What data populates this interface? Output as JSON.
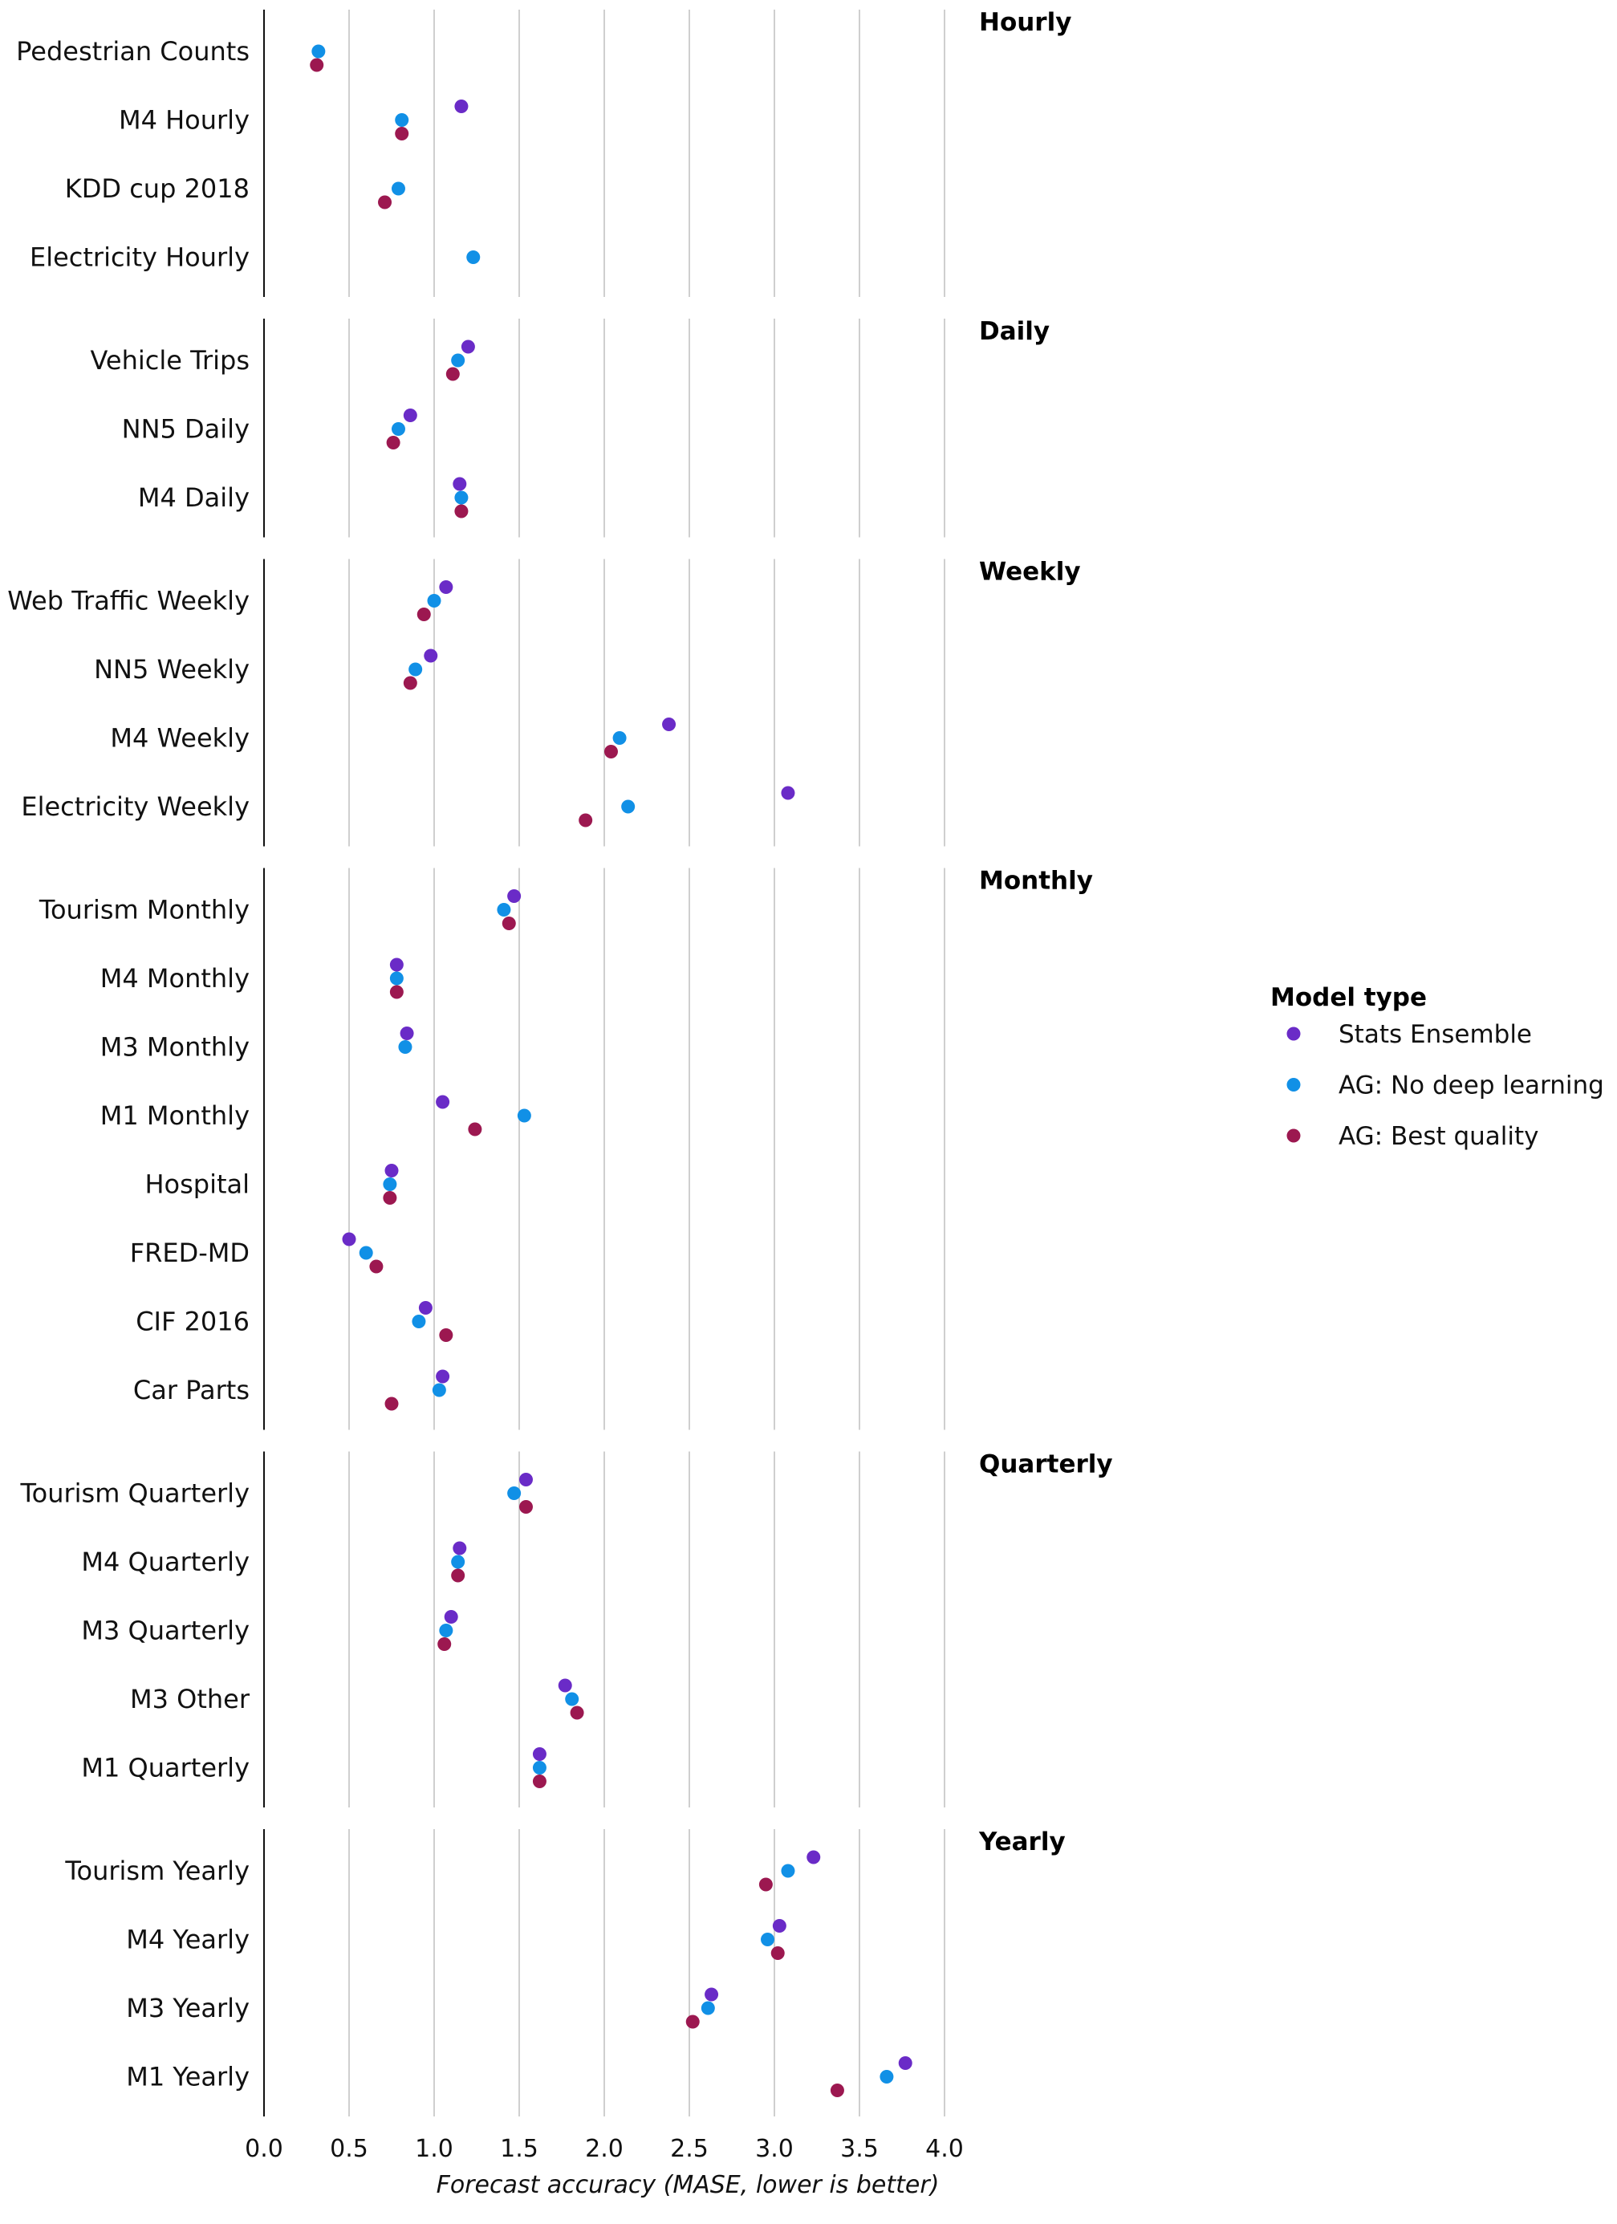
{
  "chart_data": {
    "type": "scatter",
    "subtype": "faceted dot plot",
    "xlabel": "Forecast accuracy (MASE, lower is better)",
    "ylabel": "",
    "xlim": [
      0,
      4
    ],
    "x_ticks": [
      "0.0",
      "0.5",
      "1.0",
      "1.5",
      "2.0",
      "2.5",
      "3.0",
      "3.5",
      "4.0"
    ],
    "grid": "vertical",
    "legend": {
      "title": "Model type",
      "placement": "right",
      "entries": [
        {
          "name": "Stats Ensemble",
          "color": "#6a2bc7"
        },
        {
          "name": "AG: No deep learning",
          "color": "#1190e6"
        },
        {
          "name": "AG: Best quality",
          "color": "#9c1850"
        }
      ]
    },
    "series_order": [
      "Stats Ensemble",
      "AG: No deep learning",
      "AG: Best quality"
    ],
    "facets": [
      {
        "name": "Hourly",
        "datasets": [
          {
            "label": "Pedestrian Counts",
            "values": [
              null,
              0.32,
              0.31
            ]
          },
          {
            "label": "M4 Hourly",
            "values": [
              1.16,
              0.81,
              0.81
            ]
          },
          {
            "label": "KDD cup 2018",
            "values": [
              null,
              0.79,
              0.71
            ]
          },
          {
            "label": "Electricity Hourly",
            "values": [
              null,
              1.23,
              null
            ]
          }
        ]
      },
      {
        "name": "Daily",
        "datasets": [
          {
            "label": "Vehicle Trips",
            "values": [
              1.2,
              1.14,
              1.11
            ]
          },
          {
            "label": "NN5 Daily",
            "values": [
              0.86,
              0.79,
              0.76
            ]
          },
          {
            "label": "M4 Daily",
            "values": [
              1.15,
              1.16,
              1.16
            ]
          }
        ]
      },
      {
        "name": "Weekly",
        "datasets": [
          {
            "label": "Web Traffic Weekly",
            "values": [
              1.07,
              1.0,
              0.94
            ]
          },
          {
            "label": "NN5 Weekly",
            "values": [
              0.98,
              0.89,
              0.86
            ]
          },
          {
            "label": "M4 Weekly",
            "values": [
              2.38,
              2.09,
              2.04
            ]
          },
          {
            "label": "Electricity Weekly",
            "values": [
              3.08,
              2.14,
              1.89
            ]
          }
        ]
      },
      {
        "name": "Monthly",
        "datasets": [
          {
            "label": "Tourism Monthly",
            "values": [
              1.47,
              1.41,
              1.44
            ]
          },
          {
            "label": "M4 Monthly",
            "values": [
              0.78,
              0.78,
              0.78
            ]
          },
          {
            "label": "M3 Monthly",
            "values": [
              0.84,
              0.83,
              null
            ]
          },
          {
            "label": "M1 Monthly",
            "values": [
              1.05,
              1.53,
              1.24
            ]
          },
          {
            "label": "Hospital",
            "values": [
              0.75,
              0.74,
              0.74
            ]
          },
          {
            "label": "FRED-MD",
            "values": [
              0.5,
              0.6,
              0.66
            ]
          },
          {
            "label": "CIF 2016",
            "values": [
              0.95,
              0.91,
              1.07
            ]
          },
          {
            "label": "Car Parts",
            "values": [
              1.05,
              1.03,
              0.75
            ]
          }
        ]
      },
      {
        "name": "Quarterly",
        "datasets": [
          {
            "label": "Tourism Quarterly",
            "values": [
              1.54,
              1.47,
              1.54
            ]
          },
          {
            "label": "M4 Quarterly",
            "values": [
              1.15,
              1.14,
              1.14
            ]
          },
          {
            "label": "M3 Quarterly",
            "values": [
              1.1,
              1.07,
              1.06
            ]
          },
          {
            "label": "M3 Other",
            "values": [
              1.77,
              1.81,
              1.84
            ]
          },
          {
            "label": "M1 Quarterly",
            "values": [
              1.62,
              1.62,
              1.62
            ]
          }
        ]
      },
      {
        "name": "Yearly",
        "datasets": [
          {
            "label": "Tourism Yearly",
            "values": [
              3.23,
              3.08,
              2.95
            ]
          },
          {
            "label": "M4 Yearly",
            "values": [
              3.03,
              2.96,
              3.02
            ]
          },
          {
            "label": "M3 Yearly",
            "values": [
              2.63,
              2.61,
              2.52
            ]
          },
          {
            "label": "M1 Yearly",
            "values": [
              3.77,
              3.66,
              3.37
            ]
          }
        ]
      }
    ]
  }
}
